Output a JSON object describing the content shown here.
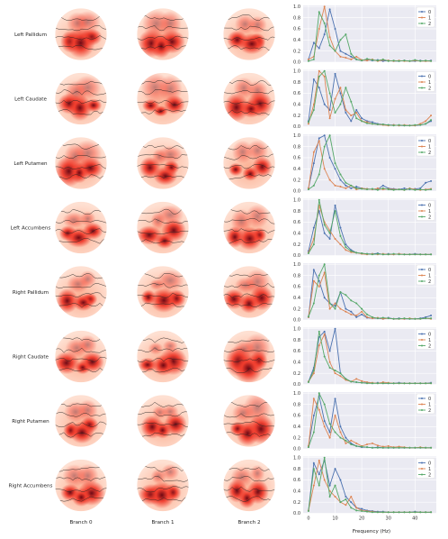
{
  "rows": [
    "Left Pallidum",
    "Left Caudate",
    "Left Putamen",
    "Left Accumbens",
    "Right Pallidum",
    "Right Caudate",
    "Right Putamen",
    "Right Accumbens"
  ],
  "columns": [
    "Branch 0",
    "Branch 1",
    "Branch 2"
  ],
  "colors": {
    "series0": "#4c72b0",
    "series1": "#dd8452",
    "series2": "#55a868",
    "panel_bg": "#eaeaf2",
    "topo_dark": "#67000d",
    "topo_mid": "#ef3b2c",
    "topo_light": "#fee0d2"
  },
  "chart_data": {
    "type": "line",
    "xlabel": "Frequency (Hz)",
    "xticks": [
      0,
      10,
      20,
      30,
      40
    ],
    "yticks": [
      "0.0",
      "0.2",
      "0.4",
      "0.6",
      "0.8",
      "1.0"
    ],
    "xlim": [
      -2,
      48
    ],
    "ylim": [
      0,
      1.02
    ],
    "grid": true,
    "legend": "top-right",
    "x": [
      0,
      2,
      4,
      6,
      8,
      10,
      12,
      14,
      16,
      18,
      20,
      22,
      24,
      26,
      28,
      30,
      32,
      34,
      36,
      38,
      40,
      42,
      44,
      46
    ],
    "panels": [
      {
        "region": "Left Pallidum",
        "series": [
          {
            "name": "0",
            "values": [
              0.05,
              0.35,
              0.25,
              0.5,
              0.95,
              0.6,
              0.2,
              0.15,
              0.1,
              0.05,
              0.03,
              0.05,
              0.03,
              0.04,
              0.02,
              0.03,
              0.02,
              0.02,
              0.03,
              0.02,
              0.02,
              0.03,
              0.02,
              0.03
            ]
          },
          {
            "name": "1",
            "values": [
              0.05,
              0.1,
              0.6,
              1.0,
              0.45,
              0.2,
              0.1,
              0.08,
              0.05,
              0.1,
              0.04,
              0.03,
              0.05,
              0.02,
              0.04,
              0.03,
              0.02,
              0.03,
              0.02,
              0.02,
              0.03,
              0.02,
              0.02,
              0.02
            ]
          },
          {
            "name": "2",
            "values": [
              0.02,
              0.05,
              0.9,
              0.7,
              0.3,
              0.2,
              0.4,
              0.5,
              0.15,
              0.05,
              0.03,
              0.06,
              0.04,
              0.03,
              0.05,
              0.02,
              0.03,
              0.02,
              0.03,
              0.02,
              0.04,
              0.02,
              0.03,
              0.02
            ]
          }
        ]
      },
      {
        "region": "Left Caudate",
        "series": [
          {
            "name": "0",
            "values": [
              0.1,
              0.85,
              0.7,
              0.4,
              0.3,
              0.95,
              0.6,
              0.25,
              0.1,
              0.3,
              0.15,
              0.1,
              0.08,
              0.05,
              0.04,
              0.03,
              0.03,
              0.02,
              0.02,
              0.02,
              0.02,
              0.03,
              0.05,
              0.1
            ]
          },
          {
            "name": "1",
            "values": [
              0.05,
              0.4,
              1.0,
              0.9,
              0.15,
              0.5,
              0.7,
              0.3,
              0.2,
              0.25,
              0.1,
              0.08,
              0.05,
              0.04,
              0.03,
              0.02,
              0.03,
              0.02,
              0.03,
              0.02,
              0.02,
              0.05,
              0.1,
              0.2
            ]
          },
          {
            "name": "2",
            "values": [
              0.08,
              0.3,
              0.9,
              1.0,
              0.6,
              0.25,
              0.4,
              0.7,
              0.45,
              0.15,
              0.1,
              0.06,
              0.05,
              0.04,
              0.04,
              0.03,
              0.02,
              0.03,
              0.02,
              0.02,
              0.03,
              0.03,
              0.05,
              0.12
            ]
          }
        ]
      },
      {
        "region": "Left Putamen",
        "series": [
          {
            "name": "0",
            "values": [
              0.05,
              0.5,
              0.95,
              1.0,
              0.6,
              0.4,
              0.2,
              0.1,
              0.05,
              0.08,
              0.05,
              0.04,
              0.03,
              0.03,
              0.1,
              0.05,
              0.04,
              0.03,
              0.05,
              0.03,
              0.04,
              0.05,
              0.15,
              0.18
            ]
          },
          {
            "name": "1",
            "values": [
              0.05,
              0.7,
              0.9,
              0.4,
              0.2,
              0.1,
              0.08,
              0.05,
              0.1,
              0.03,
              0.05,
              0.04,
              0.03,
              0.05,
              0.03,
              0.04,
              0.03,
              0.03,
              0.02,
              0.05,
              0.03,
              0.02,
              0.03,
              0.04
            ]
          },
          {
            "name": "2",
            "values": [
              0.03,
              0.1,
              0.3,
              0.8,
              1.0,
              0.5,
              0.3,
              0.15,
              0.1,
              0.05,
              0.04,
              0.03,
              0.04,
              0.02,
              0.05,
              0.03,
              0.02,
              0.03,
              0.02,
              0.04,
              0.02,
              0.03,
              0.02,
              0.03
            ]
          }
        ]
      },
      {
        "region": "Left Accumbens",
        "series": [
          {
            "name": "0",
            "values": [
              0.08,
              0.5,
              0.8,
              0.4,
              0.3,
              0.9,
              0.5,
              0.2,
              0.1,
              0.05,
              0.04,
              0.03,
              0.03,
              0.04,
              0.02,
              0.03,
              0.02,
              0.03,
              0.02,
              0.02,
              0.03,
              0.02,
              0.02,
              0.02
            ]
          },
          {
            "name": "1",
            "values": [
              0.05,
              0.3,
              0.9,
              0.6,
              0.45,
              0.3,
              0.2,
              0.1,
              0.06,
              0.05,
              0.03,
              0.02,
              0.03,
              0.02,
              0.03,
              0.02,
              0.02,
              0.03,
              0.02,
              0.02,
              0.02,
              0.02,
              0.02,
              0.02
            ]
          },
          {
            "name": "2",
            "values": [
              0.04,
              0.2,
              1.0,
              0.55,
              0.4,
              0.8,
              0.35,
              0.15,
              0.08,
              0.05,
              0.04,
              0.03,
              0.02,
              0.03,
              0.02,
              0.02,
              0.03,
              0.02,
              0.02,
              0.02,
              0.02,
              0.02,
              0.02,
              0.02
            ]
          }
        ]
      },
      {
        "region": "Right Pallidum",
        "series": [
          {
            "name": "0",
            "values": [
              0.05,
              0.9,
              0.7,
              0.4,
              0.3,
              0.25,
              0.5,
              0.2,
              0.15,
              0.05,
              0.1,
              0.04,
              0.03,
              0.03,
              0.02,
              0.04,
              0.02,
              0.03,
              0.02,
              0.02,
              0.02,
              0.03,
              0.05,
              0.08
            ]
          },
          {
            "name": "1",
            "values": [
              0.05,
              0.7,
              0.6,
              0.85,
              0.2,
              0.3,
              0.2,
              0.15,
              0.1,
              0.08,
              0.15,
              0.05,
              0.03,
              0.04,
              0.02,
              0.03,
              0.02,
              0.02,
              0.02,
              0.03,
              0.02,
              0.02,
              0.03,
              0.02
            ]
          },
          {
            "name": "2",
            "values": [
              0.06,
              0.3,
              0.8,
              1.0,
              0.3,
              0.2,
              0.5,
              0.45,
              0.35,
              0.3,
              0.2,
              0.1,
              0.05,
              0.03,
              0.04,
              0.03,
              0.02,
              0.02,
              0.03,
              0.02,
              0.02,
              0.02,
              0.03,
              0.03
            ]
          }
        ]
      },
      {
        "region": "Right Caudate",
        "series": [
          {
            "name": "0",
            "values": [
              0.05,
              0.3,
              0.85,
              0.95,
              0.6,
              1.0,
              0.2,
              0.1,
              0.05,
              0.04,
              0.03,
              0.03,
              0.02,
              0.03,
              0.02,
              0.02,
              0.02,
              0.03,
              0.02,
              0.02,
              0.02,
              0.02,
              0.02,
              0.03
            ]
          },
          {
            "name": "1",
            "values": [
              0.05,
              0.2,
              0.7,
              0.9,
              0.4,
              0.2,
              0.15,
              0.08,
              0.05,
              0.1,
              0.06,
              0.04,
              0.03,
              0.02,
              0.04,
              0.03,
              0.02,
              0.02,
              0.02,
              0.02,
              0.02,
              0.02,
              0.02,
              0.02
            ]
          },
          {
            "name": "2",
            "values": [
              0.04,
              0.25,
              0.95,
              0.5,
              0.3,
              0.25,
              0.2,
              0.1,
              0.05,
              0.04,
              0.03,
              0.02,
              0.02,
              0.02,
              0.02,
              0.02,
              0.02,
              0.02,
              0.02,
              0.02,
              0.02,
              0.02,
              0.02,
              0.02
            ]
          }
        ]
      },
      {
        "region": "Right Putamen",
        "series": [
          {
            "name": "0",
            "values": [
              0.05,
              0.6,
              0.95,
              0.5,
              0.3,
              0.9,
              0.4,
              0.2,
              0.1,
              0.05,
              0.03,
              0.03,
              0.02,
              0.03,
              0.02,
              0.02,
              0.02,
              0.02,
              0.02,
              0.02,
              0.02,
              0.02,
              0.02,
              0.02
            ]
          },
          {
            "name": "1",
            "values": [
              0.05,
              0.9,
              0.7,
              0.4,
              0.2,
              0.6,
              0.3,
              0.1,
              0.15,
              0.1,
              0.05,
              0.08,
              0.1,
              0.06,
              0.04,
              0.05,
              0.03,
              0.04,
              0.03,
              0.02,
              0.02,
              0.03,
              0.02,
              0.02
            ]
          },
          {
            "name": "2",
            "values": [
              0.03,
              0.3,
              1.0,
              0.8,
              0.45,
              0.3,
              0.2,
              0.15,
              0.08,
              0.05,
              0.04,
              0.03,
              0.02,
              0.02,
              0.02,
              0.02,
              0.02,
              0.02,
              0.02,
              0.02,
              0.02,
              0.02,
              0.02,
              0.02
            ]
          }
        ]
      },
      {
        "region": "Right Accumbens",
        "series": [
          {
            "name": "0",
            "values": [
              0.05,
              0.9,
              0.7,
              0.95,
              0.5,
              0.8,
              0.6,
              0.3,
              0.2,
              0.1,
              0.08,
              0.05,
              0.04,
              0.03,
              0.03,
              0.02,
              0.02,
              0.02,
              0.02,
              0.02,
              0.03,
              0.02,
              0.02,
              0.02
            ]
          },
          {
            "name": "1",
            "values": [
              0.05,
              0.5,
              0.95,
              0.6,
              0.4,
              0.3,
              0.2,
              0.15,
              0.3,
              0.1,
              0.05,
              0.04,
              0.03,
              0.02,
              0.02,
              0.02,
              0.02,
              0.02,
              0.02,
              0.02,
              0.02,
              0.02,
              0.02,
              0.02
            ]
          },
          {
            "name": "2",
            "values": [
              0.04,
              0.8,
              0.5,
              1.0,
              0.3,
              0.5,
              0.2,
              0.25,
              0.1,
              0.05,
              0.04,
              0.03,
              0.02,
              0.02,
              0.02,
              0.02,
              0.02,
              0.02,
              0.02,
              0.02,
              0.02,
              0.02,
              0.02,
              0.02
            ]
          }
        ]
      }
    ]
  }
}
